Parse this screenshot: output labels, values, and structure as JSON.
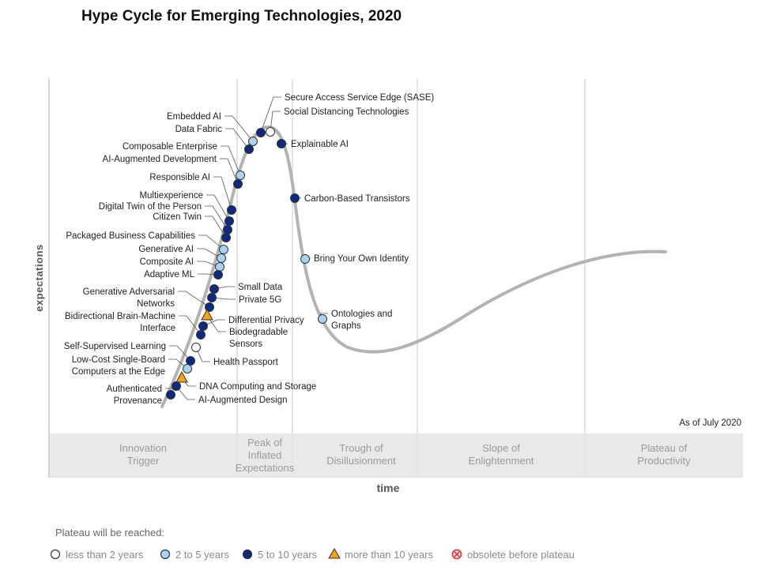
{
  "title": "Hype Cycle for Emerging Technologies, 2020",
  "y_axis_label": "expectations",
  "x_axis_label": "time",
  "as_of": "As of July 2020",
  "phases": [
    "Innovation Trigger",
    "Peak of Inflated Expectations",
    "Trough of Disillusionment",
    "Slope of Enlightenment",
    "Plateau of Productivity"
  ],
  "phase_lines": [
    [
      "Innovation",
      "Trigger"
    ],
    [
      "Peak of",
      "Inflated",
      "Expectations"
    ],
    [
      "Trough of",
      "Disillusionment"
    ],
    [
      "Slope of",
      "Enlightenment"
    ],
    [
      "Plateau of",
      "Productivity"
    ]
  ],
  "colors": {
    "lt2": "#ffffff",
    "2to5": "#a9d3f5",
    "5to10": "#0b2a80",
    "gt10": "#f3a21b",
    "obsolete": "#e8333a",
    "curve": "#b3b3b3"
  },
  "legend": {
    "title": "Plateau will be reached:",
    "items": [
      {
        "key": "lt2",
        "label": "less than 2 years",
        "icon": "circle-white"
      },
      {
        "key": "2to5",
        "label": "2 to 5 years",
        "icon": "circle-light-blue"
      },
      {
        "key": "5to10",
        "label": "5 to 10 years",
        "icon": "circle-dark-blue"
      },
      {
        "key": "gt10",
        "label": "more than 10 years",
        "icon": "triangle-orange"
      },
      {
        "key": "obsolete",
        "label": "obsolete before plateau",
        "icon": "circle-x-red"
      }
    ]
  },
  "technologies": [
    {
      "name": [
        "Embedded AI"
      ],
      "plateau": "2to5"
    },
    {
      "name": [
        "Data Fabric"
      ],
      "plateau": "5to10"
    },
    {
      "name": [
        "Composable Enterprise"
      ],
      "plateau": "2to5"
    },
    {
      "name": [
        "AI-Augmented Development"
      ],
      "plateau": "5to10"
    },
    {
      "name": [
        "Responsible AI"
      ],
      "plateau": "5to10"
    },
    {
      "name": [
        "Multiexperience"
      ],
      "plateau": "5to10"
    },
    {
      "name": [
        "Digital Twin of the Person"
      ],
      "plateau": "5to10"
    },
    {
      "name": [
        "Citizen Twin"
      ],
      "plateau": "5to10"
    },
    {
      "name": [
        "Packaged Business Capabilities"
      ],
      "plateau": "2to5"
    },
    {
      "name": [
        "Generative AI"
      ],
      "plateau": "2to5"
    },
    {
      "name": [
        "Composite AI"
      ],
      "plateau": "2to5"
    },
    {
      "name": [
        "Adaptive ML"
      ],
      "plateau": "5to10"
    },
    {
      "name": [
        "Generative Adversarial",
        "Networks"
      ],
      "plateau": "5to10"
    },
    {
      "name": [
        "Bidirectional Brain-Machine",
        "Interface"
      ],
      "plateau": "5to10"
    },
    {
      "name": [
        "Self-Supervised Learning"
      ],
      "plateau": "5to10"
    },
    {
      "name": [
        "Low-Cost Single-Board",
        "Computers at the Edge"
      ],
      "plateau": "2to5"
    },
    {
      "name": [
        "Authenticated",
        "Provenance"
      ],
      "plateau": "5to10"
    },
    {
      "name": [
        "Secure Access Service Edge (SASE)"
      ],
      "plateau": "5to10"
    },
    {
      "name": [
        "Social Distancing Technologies"
      ],
      "plateau": "lt2"
    },
    {
      "name": [
        "Explainable AI"
      ],
      "plateau": "5to10"
    },
    {
      "name": [
        "Carbon-Based Transistors"
      ],
      "plateau": "5to10"
    },
    {
      "name": [
        "Bring Your Own Identity"
      ],
      "plateau": "2to5"
    },
    {
      "name": [
        "Ontologies and",
        "Graphs"
      ],
      "plateau": "2to5"
    },
    {
      "name": [
        "Small Data"
      ],
      "plateau": "5to10"
    },
    {
      "name": [
        "Private 5G"
      ],
      "plateau": "5to10"
    },
    {
      "name": [
        "Differential Privacy"
      ],
      "plateau": "5to10"
    },
    {
      "name": [
        "Biodegradable",
        "Sensors"
      ],
      "plateau": "gt10"
    },
    {
      "name": [
        "Health Passport"
      ],
      "plateau": "lt2"
    },
    {
      "name": [
        "DNA Computing and Storage"
      ],
      "plateau": "gt10"
    },
    {
      "name": [
        "AI-Augmented Design"
      ],
      "plateau": "5to10"
    }
  ]
}
